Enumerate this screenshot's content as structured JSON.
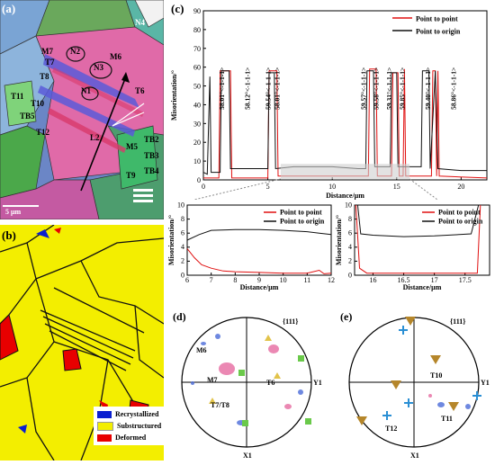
{
  "panels": {
    "a": {
      "label": "(a)",
      "scale": "5 μm",
      "labels": [
        "N4",
        "M7",
        "T7",
        "T8",
        "N2",
        "N3",
        "M6",
        "N1",
        "T6",
        "L2",
        "T11",
        "T10",
        "TB5",
        "T12",
        "TB2",
        "TB3",
        "M5",
        "TB4",
        "T9"
      ]
    },
    "b": {
      "label": "(b)",
      "legend": [
        {
          "name": "Recrystallized",
          "color": "#0a1fd0"
        },
        {
          "name": "Substructured",
          "color": "#f3ee00"
        },
        {
          "name": "Deformed",
          "color": "#e80000"
        }
      ]
    },
    "c": {
      "label": "(c)"
    },
    "d": {
      "label": "(d)",
      "pole": "{111}",
      "y": "Y1",
      "x": "X1",
      "grains": [
        "M6",
        "M7",
        "T6",
        "T7/T8"
      ]
    },
    "e": {
      "label": "(e)",
      "pole": "{111}",
      "y": "Y1",
      "x": "X1",
      "grains": [
        "T10",
        "T11",
        "T12"
      ]
    }
  },
  "chart_data": [
    {
      "type": "line",
      "xlabel": "Distance/μm",
      "ylabel": "Misorientation/°",
      "xlim": [
        0,
        22
      ],
      "ylim": [
        0,
        90
      ],
      "xticks": [
        0,
        5,
        10,
        15,
        20
      ],
      "yticks": [
        0,
        10,
        20,
        30,
        40,
        50,
        60,
        70,
        80,
        90
      ],
      "legend_position": "top-right",
      "series": [
        {
          "name": "Point to point",
          "color": "#e01010",
          "points": [
            [
              0,
              1
            ],
            [
              1.2,
              1
            ],
            [
              1.3,
              58
            ],
            [
              2.1,
              58
            ],
            [
              2.2,
              1
            ],
            [
              5,
              1
            ],
            [
              5.1,
              58
            ],
            [
              5.7,
              58
            ],
            [
              5.8,
              2
            ],
            [
              12.8,
              2
            ],
            [
              12.9,
              59
            ],
            [
              13.4,
              59
            ],
            [
              13.5,
              2
            ],
            [
              14.6,
              2
            ],
            [
              14.7,
              57
            ],
            [
              15.1,
              57
            ],
            [
              15.2,
              2
            ],
            [
              15.5,
              2
            ],
            [
              15.6,
              59
            ],
            [
              15.7,
              2
            ],
            [
              17.7,
              2
            ],
            [
              17.8,
              58
            ],
            [
              18.0,
              58
            ],
            [
              18.1,
              2
            ],
            [
              18.2,
              58
            ],
            [
              18.3,
              2
            ],
            [
              22,
              1
            ]
          ]
        },
        {
          "name": "Point to origin",
          "color": "#111111",
          "points": [
            [
              0,
              4
            ],
            [
              0.3,
              3
            ],
            [
              0.5,
              55
            ],
            [
              0.6,
              4
            ],
            [
              1.3,
              4
            ],
            [
              1.4,
              58
            ],
            [
              2.0,
              58
            ],
            [
              2.1,
              6
            ],
            [
              5.0,
              6
            ],
            [
              5.1,
              57
            ],
            [
              5.5,
              57
            ],
            [
              5.6,
              6
            ],
            [
              7,
              7
            ],
            [
              10,
              7
            ],
            [
              12,
              6
            ],
            [
              12.6,
              6
            ],
            [
              12.7,
              58
            ],
            [
              13.2,
              58
            ],
            [
              13.3,
              7
            ],
            [
              14.5,
              7
            ],
            [
              14.6,
              57
            ],
            [
              15.0,
              57
            ],
            [
              15.1,
              7
            ],
            [
              16.9,
              7
            ],
            [
              17.0,
              58
            ],
            [
              17.5,
              58
            ],
            [
              17.6,
              6
            ],
            [
              18.0,
              58
            ],
            [
              18.2,
              6
            ],
            [
              20,
              5
            ],
            [
              22,
              5
            ]
          ]
        }
      ],
      "annotations": [
        "58.01°<-1-1-1>",
        "58.12°<-1-1-1>",
        "59.54°<-1-1-1>",
        "58.01°<-1-1-1>",
        "59.57°<-1-1-1>",
        "59.58°<-1-1-1>",
        "59.31°<-1-1-1>",
        "59.85°<-1-1-1>",
        "59.40°<-1-1-1>",
        "58.86°<-1-1-1>"
      ]
    },
    {
      "type": "line",
      "xlabel": "Distance/μm",
      "ylabel": "Misorientation/°",
      "xlim": [
        6,
        12
      ],
      "ylim": [
        0,
        10
      ],
      "xticks": [
        6,
        7,
        8,
        9,
        10,
        11,
        12
      ],
      "yticks": [
        0,
        2,
        4,
        6,
        8,
        10
      ],
      "legend_position": "top-right",
      "series": [
        {
          "name": "Point to point",
          "color": "#e01010",
          "points": [
            [
              6,
              3.8
            ],
            [
              6.3,
              2.5
            ],
            [
              6.6,
              1.5
            ],
            [
              7,
              1
            ],
            [
              7.5,
              0.6
            ],
            [
              8,
              0.5
            ],
            [
              9,
              0.4
            ],
            [
              10,
              0.3
            ],
            [
              11,
              0.3
            ],
            [
              11.5,
              0.7
            ],
            [
              11.7,
              0.2
            ],
            [
              12,
              0.3
            ]
          ]
        },
        {
          "name": "Point to origin",
          "color": "#111111",
          "points": [
            [
              6,
              5
            ],
            [
              6.5,
              5.8
            ],
            [
              7,
              6.4
            ],
            [
              8,
              6.5
            ],
            [
              9,
              6.5
            ],
            [
              10,
              6.4
            ],
            [
              11,
              6.2
            ],
            [
              11.5,
              6.0
            ],
            [
              12,
              5.8
            ]
          ]
        }
      ]
    },
    {
      "type": "line",
      "xlabel": "Distance/μm",
      "ylabel": "Misorientation/°",
      "xlim": [
        15.7,
        17.9
      ],
      "ylim": [
        0,
        10
      ],
      "xticks": [
        16.0,
        16.5,
        17.0,
        17.5
      ],
      "yticks": [
        0,
        2,
        4,
        6,
        8,
        10
      ],
      "legend_position": "top-right",
      "series": [
        {
          "name": "Point to point",
          "color": "#e01010",
          "points": [
            [
              15.72,
              10
            ],
            [
              15.78,
              1
            ],
            [
              15.9,
              0.3
            ],
            [
              16.5,
              0.3
            ],
            [
              17.7,
              0.3
            ],
            [
              17.75,
              10
            ]
          ]
        },
        {
          "name": "Point to origin",
          "color": "#111111",
          "points": [
            [
              15.75,
              10
            ],
            [
              15.8,
              5.9
            ],
            [
              16,
              5.7
            ],
            [
              16.5,
              5.5
            ],
            [
              17,
              5.6
            ],
            [
              17.6,
              5.9
            ],
            [
              17.72,
              10
            ]
          ]
        }
      ]
    }
  ]
}
